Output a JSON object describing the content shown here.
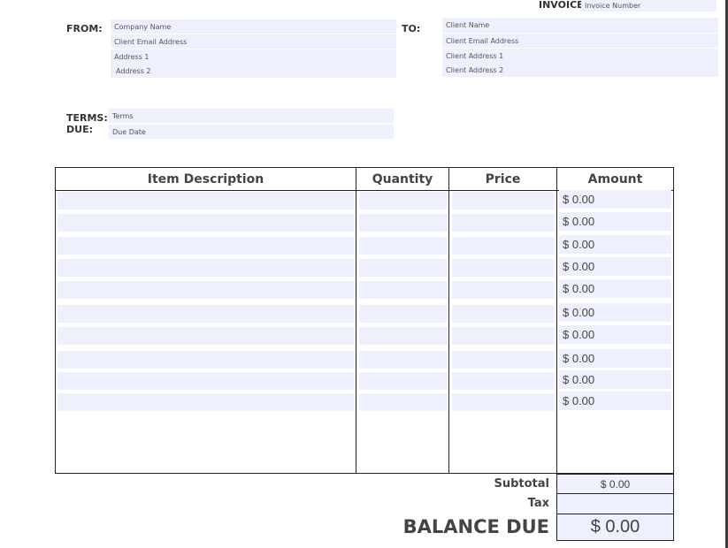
{
  "header": {
    "invoice_label": "INVOICE",
    "invoice_number": "Invoice Number"
  },
  "from": {
    "label": "FROM:",
    "company": "Company Name",
    "email": "Client Email Address",
    "address1": "Address 1",
    "address2": "Address 2"
  },
  "to": {
    "label": "TO:",
    "name": "Client Name",
    "email": "Client Email Address",
    "address1": "Client Address 1",
    "address2": "Client Address 2"
  },
  "terms": {
    "terms_label": "TERMS:",
    "due_label": "DUE:",
    "terms": "Terms",
    "due": "Due Date"
  },
  "table": {
    "headers": [
      "Item Description",
      "Quantity",
      "Price",
      "Amount"
    ],
    "amounts": [
      "$ 0.00",
      "$ 0.00",
      "$ 0.00",
      "$ 0.00",
      "$ 0.00",
      "$ 0.00",
      "$ 0.00",
      "$ 0.00",
      "$ 0.00",
      "$ 0.00"
    ]
  },
  "totals": {
    "subtotal_label": "Subtotal",
    "subtotal": "$ 0.00",
    "tax_label": "Tax",
    "tax": "",
    "balance_label": "BALANCE DUE",
    "balance": "$ 0.00"
  },
  "colors": {
    "field_bg": "#eef1fd",
    "border": "#222222"
  }
}
